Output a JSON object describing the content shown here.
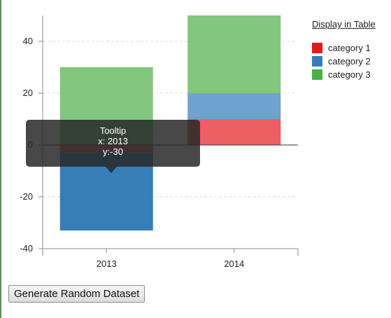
{
  "chart_data": {
    "type": "bar",
    "stacked": true,
    "categories": [
      "2013",
      "2014"
    ],
    "series": [
      {
        "name": "category 1",
        "color": "#e41a1c",
        "values": [
          -3,
          10
        ]
      },
      {
        "name": "category 2",
        "color": "#377eb8",
        "values": [
          -30,
          10
        ]
      },
      {
        "name": "category 3",
        "color": "#4daf4a",
        "values": [
          30,
          30
        ]
      }
    ],
    "ylim": [
      -40,
      50
    ],
    "yticks": [
      "-40",
      "-20",
      "0",
      "20",
      "40"
    ],
    "grid": true,
    "legend_position": "right"
  },
  "legend": {
    "display_in_table_label": "Display in Table"
  },
  "tooltip": {
    "title": "Tooltip",
    "x_text": "x: 2013",
    "y_text": "y:-30"
  },
  "controls": {
    "generate_button_label": "Generate Random Dataset"
  }
}
